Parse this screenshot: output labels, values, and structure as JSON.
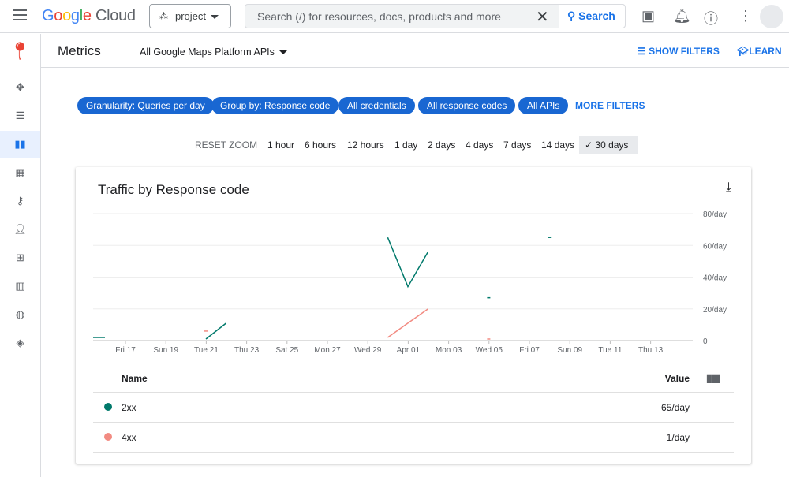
{
  "topbar": {
    "logo": "Google Cloud",
    "project": "project",
    "search_placeholder": "Search (/) for resources, docs, products and more",
    "search_button": "Search"
  },
  "sidebar": {
    "items": [
      "move-icon",
      "list-icon",
      "bar-chart-icon",
      "calendar-icon",
      "key-icon",
      "person-icon",
      "apps-icon",
      "map-icon",
      "palette-icon",
      "layers-icon"
    ],
    "active": 2
  },
  "header": {
    "title": "Metrics",
    "api_selector": "All Google Maps Platform APIs",
    "show_filters": "SHOW FILTERS",
    "learn": "LEARN"
  },
  "filters": {
    "chips": [
      "Granularity: Queries per day",
      "Group by: Response code",
      "All credentials",
      "All response codes",
      "All APIs"
    ],
    "more": "MORE FILTERS"
  },
  "zoom": {
    "reset": "RESET ZOOM",
    "options": [
      "1 hour",
      "6 hours",
      "12 hours",
      "1 day",
      "2 days",
      "4 days",
      "7 days",
      "14 days",
      "30 days"
    ],
    "selected": "30 days"
  },
  "card": {
    "title": "Traffic by Response code",
    "table": {
      "headers": [
        "Name",
        "Value"
      ],
      "rows": [
        {
          "name": "2xx",
          "value": "65/day",
          "color": "#00796b"
        },
        {
          "name": "4xx",
          "value": "1/day",
          "color": "#f28b82"
        }
      ]
    }
  },
  "chart_data": {
    "type": "line",
    "title": "Traffic by Response code",
    "ylim": [
      0,
      80
    ],
    "yticks": [
      "0",
      "20/day",
      "40/day",
      "60/day",
      "80/day"
    ],
    "xticks": [
      "Fri 17",
      "Sun 19",
      "Tue 21",
      "Thu 23",
      "Sat 25",
      "Mon 27",
      "Wed 29",
      "Apr 01",
      "Mon 03",
      "Wed 05",
      "Fri 07",
      "Sun 09",
      "Tue 11",
      "Thu 13"
    ],
    "grid": true,
    "series": [
      {
        "name": "2xx",
        "color": "#00796b",
        "segments": [
          [
            [
              "Mar 15",
              2
            ],
            [
              "Mar 16",
              2
            ]
          ],
          [
            [
              "Mar 21",
              1
            ],
            [
              "Mar 22",
              11
            ]
          ],
          [
            [
              "Mar 30",
              65
            ],
            [
              "Mar 31",
              34
            ],
            [
              "Apr 01",
              56
            ]
          ],
          [
            [
              "Apr 04",
              27
            ]
          ],
          [
            [
              "Apr 07",
              65
            ]
          ]
        ]
      },
      {
        "name": "4xx",
        "color": "#f28b82",
        "segments": [
          [
            [
              "Mar 21",
              6
            ]
          ],
          [
            [
              "Mar 30",
              2
            ],
            [
              "Apr 01",
              20
            ]
          ],
          [
            [
              "Apr 04",
              1
            ]
          ]
        ]
      }
    ]
  }
}
